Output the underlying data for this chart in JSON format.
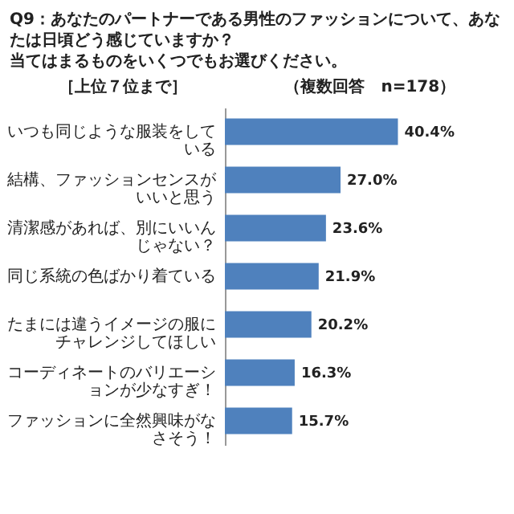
{
  "chart_data": {
    "type": "bar",
    "orientation": "horizontal",
    "title": "Q9：あなたのパートナーである男性のファッションについて、あなたは日頃どう感じていますか？",
    "subtitle": "当てはまるものをいくつでもお選びください。",
    "annotations": [
      "［上位７位まで］",
      "（複数回答　n=178）"
    ],
    "categories": [
      "いつも同じような服装をしている",
      "結構、ファッションセンスがいいと思う",
      "清潔感があれば、別にいいんじゃない？",
      "同じ系統の色ばかり着ている",
      "たまには違うイメージの服にチャレンジしてほしい",
      "コーディネートのバリエーションが少なすぎ！",
      "ファッションに全然興味がなさそう！"
    ],
    "values": [
      40.4,
      27.0,
      23.6,
      21.9,
      20.2,
      16.3,
      15.7
    ],
    "value_labels": [
      "40.4%",
      "27.0%",
      "23.6%",
      "21.9%",
      "20.2%",
      "16.3%",
      "15.7%"
    ],
    "color": "#4f81bd"
  }
}
